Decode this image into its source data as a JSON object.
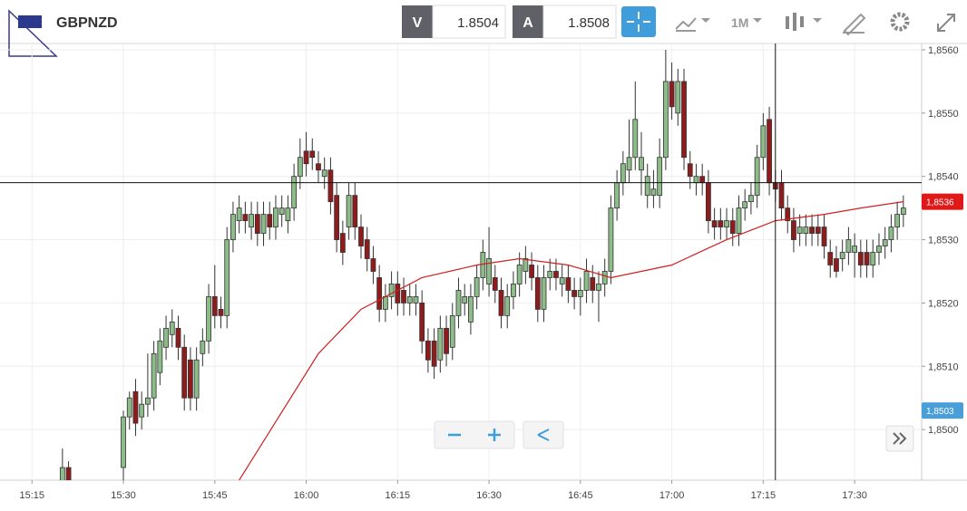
{
  "toolbar": {
    "symbol": "GBPNZD",
    "bid_label": "V",
    "bid": "1.8504",
    "ask_label": "A",
    "ask": "1.8508",
    "interval": "1M"
  },
  "chart_data": {
    "type": "candlestick",
    "up_color": "#8cbc88",
    "down_color": "#8e1c1c",
    "ma_color": "#d02020",
    "ylim": [
      1.8492,
      1.8561
    ],
    "yticks": [
      {
        "value": 1.85,
        "label": "1,8500"
      },
      {
        "value": 1.851,
        "label": "1,8510"
      },
      {
        "value": 1.852,
        "label": "1,8520"
      },
      {
        "value": 1.853,
        "label": "1,8530"
      },
      {
        "value": 1.854,
        "label": "1,8540"
      },
      {
        "value": 1.855,
        "label": "1,8550"
      },
      {
        "value": 1.856,
        "label": "1,8560"
      }
    ],
    "xlim": [
      "15:09:45",
      "17:41"
    ],
    "xticks": [
      "15:15",
      "15:30",
      "15:45",
      "16:00",
      "16:15",
      "16:30",
      "16:45",
      "17:00",
      "17:15",
      "17:30"
    ],
    "x": [
      "15:20",
      "15:21",
      "15:30",
      "15:31",
      "15:32",
      "15:33",
      "15:34",
      "15:35",
      "15:36",
      "15:37",
      "15:38",
      "15:39",
      "15:40",
      "15:41",
      "15:42",
      "15:43",
      "15:44",
      "15:45",
      "15:46",
      "15:47",
      "15:48",
      "15:49",
      "15:50",
      "15:51",
      "15:52",
      "15:53",
      "15:54",
      "15:55",
      "15:56",
      "15:57",
      "15:58",
      "15:59",
      "16:00",
      "16:01",
      "16:02",
      "16:03",
      "16:04",
      "16:05",
      "16:06",
      "16:07",
      "16:08",
      "16:09",
      "16:10",
      "16:11",
      "16:12",
      "16:13",
      "16:14",
      "16:15",
      "16:16",
      "16:17",
      "16:18",
      "16:19",
      "16:20",
      "16:21",
      "16:22",
      "16:23",
      "16:24",
      "16:25",
      "16:26",
      "16:27",
      "16:28",
      "16:29",
      "16:30",
      "16:31",
      "16:32",
      "16:33",
      "16:34",
      "16:35",
      "16:36",
      "16:37",
      "16:38",
      "16:39",
      "16:40",
      "16:41",
      "16:42",
      "16:43",
      "16:44",
      "16:45",
      "16:46",
      "16:47",
      "16:48",
      "16:49",
      "16:50",
      "16:51",
      "16:52",
      "16:53",
      "16:54",
      "16:55",
      "16:56",
      "16:57",
      "16:58",
      "16:59",
      "17:00",
      "17:01",
      "17:02",
      "17:03",
      "17:04",
      "17:05",
      "17:06",
      "17:07",
      "17:08",
      "17:09",
      "17:10",
      "17:11",
      "17:12",
      "17:13",
      "17:14",
      "17:15",
      "17:16",
      "17:17",
      "17:18",
      "17:19",
      "17:20",
      "17:21",
      "17:22",
      "17:23",
      "17:24",
      "17:25",
      "17:26",
      "17:27",
      "17:28",
      "17:29",
      "17:30",
      "17:31",
      "17:32",
      "17:33",
      "17:34",
      "17:35",
      "17:36",
      "17:37",
      "17:38"
    ],
    "ohlc": [
      [
        1.849,
        1.8497,
        1.8488,
        1.8494
      ],
      [
        1.8494,
        1.8495,
        1.8487,
        1.8489
      ],
      [
        1.8494,
        1.8503,
        1.8492,
        1.8502
      ],
      [
        1.8502,
        1.8506,
        1.85,
        1.8505
      ],
      [
        1.8506,
        1.8508,
        1.8499,
        1.8501
      ],
      [
        1.8502,
        1.8506,
        1.85,
        1.8504
      ],
      [
        1.8504,
        1.8512,
        1.8502,
        1.8505
      ],
      [
        1.8505,
        1.8514,
        1.8503,
        1.8512
      ],
      [
        1.8509,
        1.8516,
        1.8507,
        1.8514
      ],
      [
        1.8513,
        1.8518,
        1.8511,
        1.8516
      ],
      [
        1.8515,
        1.8519,
        1.8513,
        1.8517
      ],
      [
        1.8516,
        1.8518,
        1.8511,
        1.8513
      ],
      [
        1.8513,
        1.8515,
        1.8503,
        1.8505
      ],
      [
        1.8511,
        1.8513,
        1.8503,
        1.8505
      ],
      [
        1.8505,
        1.8513,
        1.8503,
        1.8511
      ],
      [
        1.8512,
        1.8516,
        1.851,
        1.8514
      ],
      [
        1.8514,
        1.8523,
        1.8512,
        1.8521
      ],
      [
        1.8521,
        1.8526,
        1.8516,
        1.8518
      ],
      [
        1.8519,
        1.8521,
        1.8516,
        1.8518
      ],
      [
        1.8518,
        1.8532,
        1.8516,
        1.853
      ],
      [
        1.853,
        1.8536,
        1.8528,
        1.8534
      ],
      [
        1.8533,
        1.8537,
        1.8531,
        1.8535
      ],
      [
        1.8534,
        1.8536,
        1.8531,
        1.8533
      ],
      [
        1.8532,
        1.8536,
        1.853,
        1.8534
      ],
      [
        1.8534,
        1.8536,
        1.8529,
        1.8531
      ],
      [
        1.8531,
        1.8536,
        1.8529,
        1.8534
      ],
      [
        1.8534,
        1.8536,
        1.853,
        1.8532
      ],
      [
        1.8532,
        1.8537,
        1.853,
        1.8535
      ],
      [
        1.8534,
        1.8537,
        1.8532,
        1.8535
      ],
      [
        1.8533,
        1.8537,
        1.8531,
        1.8535
      ],
      [
        1.8535,
        1.8542,
        1.8533,
        1.854
      ],
      [
        1.854,
        1.8546,
        1.8538,
        1.8543
      ],
      [
        1.8544,
        1.8547,
        1.854,
        1.8542
      ],
      [
        1.8544,
        1.8546,
        1.8541,
        1.8543
      ],
      [
        1.8542,
        1.8544,
        1.8539,
        1.8541
      ],
      [
        1.854,
        1.8543,
        1.8538,
        1.8541
      ],
      [
        1.8541,
        1.8543,
        1.8534,
        1.8536
      ],
      [
        1.8537,
        1.8539,
        1.8528,
        1.853
      ],
      [
        1.8531,
        1.8533,
        1.8526,
        1.8528
      ],
      [
        1.8532,
        1.8539,
        1.853,
        1.8537
      ],
      [
        1.8537,
        1.8539,
        1.853,
        1.8532
      ],
      [
        1.8532,
        1.8534,
        1.8527,
        1.8529
      ],
      [
        1.853,
        1.8532,
        1.8525,
        1.8527
      ],
      [
        1.8527,
        1.8529,
        1.8523,
        1.8525
      ],
      [
        1.8524,
        1.8526,
        1.8517,
        1.8519
      ],
      [
        1.8519,
        1.8523,
        1.8517,
        1.8521
      ],
      [
        1.8521,
        1.8525,
        1.8519,
        1.8523
      ],
      [
        1.8523,
        1.8525,
        1.8518,
        1.852
      ],
      [
        1.8522,
        1.8524,
        1.8518,
        1.852
      ],
      [
        1.852,
        1.8523,
        1.8518,
        1.8521
      ],
      [
        1.852,
        1.8523,
        1.8518,
        1.8521
      ],
      [
        1.852,
        1.8522,
        1.8512,
        1.8514
      ],
      [
        1.8514,
        1.8516,
        1.8509,
        1.8511
      ],
      [
        1.8514,
        1.8516,
        1.8508,
        1.851
      ],
      [
        1.8511,
        1.8518,
        1.8509,
        1.8516
      ],
      [
        1.8516,
        1.8518,
        1.851,
        1.8512
      ],
      [
        1.8513,
        1.852,
        1.8511,
        1.8518
      ],
      [
        1.8518,
        1.8524,
        1.8516,
        1.8522
      ],
      [
        1.852,
        1.8523,
        1.8518,
        1.8521
      ],
      [
        1.8517,
        1.8523,
        1.8515,
        1.8521
      ],
      [
        1.8521,
        1.8526,
        1.8519,
        1.8524
      ],
      [
        1.8524,
        1.853,
        1.8522,
        1.8528
      ],
      [
        1.8523,
        1.8532,
        1.8521,
        1.8527
      ],
      [
        1.8524,
        1.8526,
        1.852,
        1.8522
      ],
      [
        1.8522,
        1.8524,
        1.8516,
        1.8518
      ],
      [
        1.8518,
        1.8523,
        1.8516,
        1.8521
      ],
      [
        1.8521,
        1.8525,
        1.8519,
        1.8523
      ],
      [
        1.8523,
        1.8528,
        1.8521,
        1.8526
      ],
      [
        1.8525,
        1.8529,
        1.8523,
        1.8527
      ],
      [
        1.8526,
        1.8528,
        1.8522,
        1.8524
      ],
      [
        1.8524,
        1.8526,
        1.8517,
        1.8519
      ],
      [
        1.8519,
        1.8526,
        1.8517,
        1.8524
      ],
      [
        1.8524,
        1.8527,
        1.8522,
        1.8525
      ],
      [
        1.8525,
        1.8527,
        1.8522,
        1.8524
      ],
      [
        1.8523,
        1.8526,
        1.8521,
        1.8524
      ],
      [
        1.8524,
        1.8526,
        1.852,
        1.8522
      ],
      [
        1.8522,
        1.8524,
        1.8519,
        1.8521
      ],
      [
        1.8521,
        1.8524,
        1.8518,
        1.8522
      ],
      [
        1.8522,
        1.8527,
        1.852,
        1.8525
      ],
      [
        1.8524,
        1.8526,
        1.852,
        1.8522
      ],
      [
        1.8522,
        1.8525,
        1.8517,
        1.8523
      ],
      [
        1.8523,
        1.8527,
        1.8521,
        1.8525
      ],
      [
        1.8525,
        1.8537,
        1.8523,
        1.8535
      ],
      [
        1.8535,
        1.8541,
        1.8533,
        1.8539
      ],
      [
        1.8539,
        1.8544,
        1.8537,
        1.8542
      ],
      [
        1.8541,
        1.8549,
        1.8539,
        1.8543
      ],
      [
        1.8543,
        1.8555,
        1.8541,
        1.8549
      ],
      [
        1.8541,
        1.8547,
        1.8537,
        1.8543
      ],
      [
        1.8537,
        1.8542,
        1.8535,
        1.854
      ],
      [
        1.8537,
        1.8541,
        1.8535,
        1.8538
      ],
      [
        1.8537,
        1.8546,
        1.8535,
        1.8543
      ],
      [
        1.8543,
        1.856,
        1.8541,
        1.8555
      ],
      [
        1.8555,
        1.8558,
        1.8549,
        1.8551
      ],
      [
        1.855,
        1.8557,
        1.8548,
        1.8555
      ],
      [
        1.8555,
        1.8557,
        1.8541,
        1.8543
      ],
      [
        1.8542,
        1.8544,
        1.8538,
        1.854
      ],
      [
        1.8539,
        1.8542,
        1.8537,
        1.854
      ],
      [
        1.854,
        1.8542,
        1.8537,
        1.8539
      ],
      [
        1.8539,
        1.8541,
        1.8531,
        1.8533
      ],
      [
        1.8533,
        1.8535,
        1.853,
        1.8532
      ],
      [
        1.8533,
        1.8535,
        1.853,
        1.8532
      ],
      [
        1.8532,
        1.8535,
        1.853,
        1.8533
      ],
      [
        1.8533,
        1.8535,
        1.8529,
        1.8531
      ],
      [
        1.8531,
        1.8537,
        1.8529,
        1.8535
      ],
      [
        1.8535,
        1.8538,
        1.8533,
        1.8536
      ],
      [
        1.8536,
        1.8539,
        1.8534,
        1.8537
      ],
      [
        1.8537,
        1.8545,
        1.8535,
        1.8543
      ],
      [
        1.8543,
        1.855,
        1.8541,
        1.8548
      ],
      [
        1.8549,
        1.8551,
        1.8537,
        1.8539
      ],
      [
        1.8539,
        1.8541,
        1.8536,
        1.8538
      ],
      [
        1.8539,
        1.8541,
        1.8533,
        1.8535
      ],
      [
        1.8535,
        1.8537,
        1.8531,
        1.8533
      ],
      [
        1.8533,
        1.8535,
        1.8528,
        1.853
      ],
      [
        1.8531,
        1.8534,
        1.8529,
        1.8532
      ],
      [
        1.8531,
        1.8534,
        1.8529,
        1.8532
      ],
      [
        1.8532,
        1.8534,
        1.8529,
        1.8531
      ],
      [
        1.8532,
        1.8534,
        1.8529,
        1.8531
      ],
      [
        1.8532,
        1.8534,
        1.8527,
        1.8529
      ],
      [
        1.8528,
        1.853,
        1.8524,
        1.8526
      ],
      [
        1.8527,
        1.8529,
        1.8524,
        1.8525
      ],
      [
        1.8527,
        1.853,
        1.8525,
        1.8528
      ],
      [
        1.8528,
        1.8532,
        1.8526,
        1.853
      ],
      [
        1.8528,
        1.8531,
        1.8524,
        1.8529
      ],
      [
        1.8528,
        1.853,
        1.8524,
        1.8526
      ],
      [
        1.8528,
        1.853,
        1.8524,
        1.8526
      ],
      [
        1.8526,
        1.853,
        1.8524,
        1.8528
      ],
      [
        1.8528,
        1.8531,
        1.8526,
        1.8529
      ],
      [
        1.8529,
        1.8532,
        1.8527,
        1.853
      ],
      [
        1.853,
        1.8534,
        1.8528,
        1.8532
      ],
      [
        1.8532,
        1.8536,
        1.853,
        1.8534
      ],
      [
        1.8534,
        1.8537,
        1.8532,
        1.8535
      ]
    ],
    "ma": {
      "x": [
        "15:49",
        "16:02",
        "16:09",
        "16:19",
        "16:28",
        "16:35",
        "16:43",
        "16:50",
        "17:00",
        "17:09",
        "17:17",
        "17:25",
        "17:31",
        "17:38"
      ],
      "values": [
        1.8492,
        1.8512,
        1.8519,
        1.8524,
        1.8526,
        1.8527,
        1.8526,
        1.8524,
        1.8526,
        1.853,
        1.8533,
        1.8534,
        1.8535,
        1.8536
      ]
    },
    "crosshair": {
      "x": "17:17",
      "y": 1.8539
    },
    "last_price": {
      "value": 1.8536,
      "label": "1,8536"
    },
    "marker_price": {
      "value": 1.8503,
      "label": "1,8503"
    }
  }
}
